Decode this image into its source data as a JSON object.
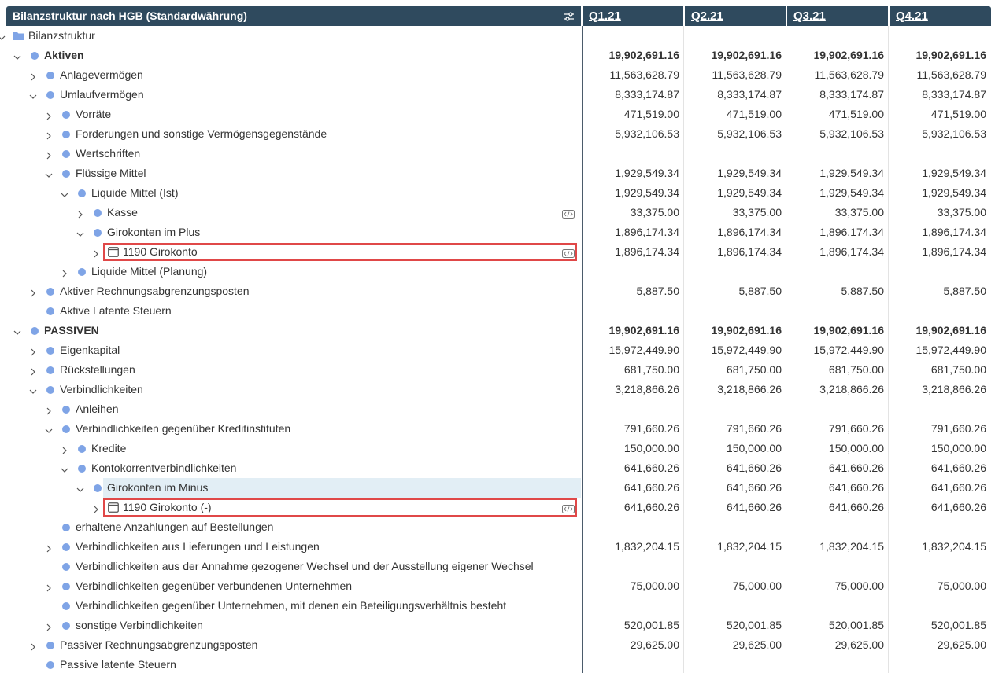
{
  "header": {
    "title": "Bilanzstruktur nach HGB (Standardwährung)",
    "columns": [
      "Q1.21",
      "Q2.21",
      "Q3.21",
      "Q4.21"
    ]
  },
  "rows": [
    {
      "label": "Bilanzstruktur",
      "level": 0,
      "expanded": true,
      "icon": "folder"
    },
    {
      "label": "Aktiven",
      "level": 1,
      "expanded": true,
      "bold": true,
      "values": [
        "19,902,691.16",
        "19,902,691.16",
        "19,902,691.16",
        "19,902,691.16"
      ]
    },
    {
      "label": "Anlagevermögen",
      "level": 2,
      "expanded": false,
      "values": [
        "11,563,628.79",
        "11,563,628.79",
        "11,563,628.79",
        "11,563,628.79"
      ]
    },
    {
      "label": "Umlaufvermögen",
      "level": 2,
      "expanded": true,
      "values": [
        "8,333,174.87",
        "8,333,174.87",
        "8,333,174.87",
        "8,333,174.87"
      ]
    },
    {
      "label": "Vorräte",
      "level": 3,
      "expanded": false,
      "values": [
        "471,519.00",
        "471,519.00",
        "471,519.00",
        "471,519.00"
      ]
    },
    {
      "label": "Forderungen und sonstige Vermögensgegenstände",
      "level": 3,
      "expanded": false,
      "values": [
        "5,932,106.53",
        "5,932,106.53",
        "5,932,106.53",
        "5,932,106.53"
      ]
    },
    {
      "label": "Wertschriften",
      "level": 3,
      "expanded": false
    },
    {
      "label": "Flüssige Mittel",
      "level": 3,
      "expanded": true,
      "values": [
        "1,929,549.34",
        "1,929,549.34",
        "1,929,549.34",
        "1,929,549.34"
      ]
    },
    {
      "label": "Liquide Mittel (Ist)",
      "level": 4,
      "expanded": true,
      "values": [
        "1,929,549.34",
        "1,929,549.34",
        "1,929,549.34",
        "1,929,549.34"
      ]
    },
    {
      "label": "Kasse",
      "level": 5,
      "expanded": false,
      "code_icon": true,
      "values": [
        "33,375.00",
        "33,375.00",
        "33,375.00",
        "33,375.00"
      ]
    },
    {
      "label": "Girokonten im Plus",
      "level": 5,
      "expanded": true,
      "values": [
        "1,896,174.34",
        "1,896,174.34",
        "1,896,174.34",
        "1,896,174.34"
      ]
    },
    {
      "label": "1190 Girokonto",
      "level": 6,
      "expanded": false,
      "icon": "account",
      "code_icon": true,
      "boxed": true,
      "values": [
        "1,896,174.34",
        "1,896,174.34",
        "1,896,174.34",
        "1,896,174.34"
      ]
    },
    {
      "label": "Liquide Mittel (Planung)",
      "level": 4,
      "expanded": false
    },
    {
      "label": "Aktiver Rechnungsabgrenzungsposten",
      "level": 2,
      "expanded": false,
      "values": [
        "5,887.50",
        "5,887.50",
        "5,887.50",
        "5,887.50"
      ]
    },
    {
      "label": "Aktive Latente Steuern",
      "level": 2
    },
    {
      "label": "PASSIVEN",
      "level": 1,
      "expanded": true,
      "bold": true,
      "values": [
        "19,902,691.16",
        "19,902,691.16",
        "19,902,691.16",
        "19,902,691.16"
      ]
    },
    {
      "label": "Eigenkapital",
      "level": 2,
      "expanded": false,
      "values": [
        "15,972,449.90",
        "15,972,449.90",
        "15,972,449.90",
        "15,972,449.90"
      ]
    },
    {
      "label": "Rückstellungen",
      "level": 2,
      "expanded": false,
      "values": [
        "681,750.00",
        "681,750.00",
        "681,750.00",
        "681,750.00"
      ]
    },
    {
      "label": "Verbindlichkeiten",
      "level": 2,
      "expanded": true,
      "values": [
        "3,218,866.26",
        "3,218,866.26",
        "3,218,866.26",
        "3,218,866.26"
      ]
    },
    {
      "label": "Anleihen",
      "level": 3,
      "expanded": false
    },
    {
      "label": "Verbindlichkeiten gegenüber Kreditinstituten",
      "level": 3,
      "expanded": true,
      "values": [
        "791,660.26",
        "791,660.26",
        "791,660.26",
        "791,660.26"
      ]
    },
    {
      "label": "Kredite",
      "level": 4,
      "expanded": false,
      "values": [
        "150,000.00",
        "150,000.00",
        "150,000.00",
        "150,000.00"
      ]
    },
    {
      "label": "Kontokorrentverbindlichkeiten",
      "level": 4,
      "expanded": true,
      "values": [
        "641,660.26",
        "641,660.26",
        "641,660.26",
        "641,660.26"
      ]
    },
    {
      "label": "Girokonten im Minus",
      "level": 5,
      "expanded": true,
      "highlighted": true,
      "values": [
        "641,660.26",
        "641,660.26",
        "641,660.26",
        "641,660.26"
      ]
    },
    {
      "label": "1190 Girokonto (-)",
      "level": 6,
      "expanded": false,
      "icon": "account",
      "code_icon": true,
      "boxed": true,
      "values": [
        "641,660.26",
        "641,660.26",
        "641,660.26",
        "641,660.26"
      ]
    },
    {
      "label": "erhaltene Anzahlungen auf Bestellungen",
      "level": 3
    },
    {
      "label": "Verbindlichkeiten aus Lieferungen und Leistungen",
      "level": 3,
      "expanded": false,
      "values": [
        "1,832,204.15",
        "1,832,204.15",
        "1,832,204.15",
        "1,832,204.15"
      ]
    },
    {
      "label": "Verbindlichkeiten aus der Annahme gezogener Wechsel und der Ausstellung eigener Wechsel",
      "level": 3
    },
    {
      "label": "Verbindlichkeiten gegenüber verbundenen Unternehmen",
      "level": 3,
      "expanded": false,
      "values": [
        "75,000.00",
        "75,000.00",
        "75,000.00",
        "75,000.00"
      ]
    },
    {
      "label": "Verbindlichkeiten gegenüber Unternehmen, mit denen ein Beteiligungsverhältnis besteht",
      "level": 3
    },
    {
      "label": "sonstige Verbindlichkeiten",
      "level": 3,
      "expanded": false,
      "values": [
        "520,001.85",
        "520,001.85",
        "520,001.85",
        "520,001.85"
      ]
    },
    {
      "label": "Passiver Rechnungsabgrenzungsposten",
      "level": 2,
      "expanded": false,
      "values": [
        "29,625.00",
        "29,625.00",
        "29,625.00",
        "29,625.00"
      ]
    },
    {
      "label": "Passive latente Steuern",
      "level": 2
    }
  ]
}
